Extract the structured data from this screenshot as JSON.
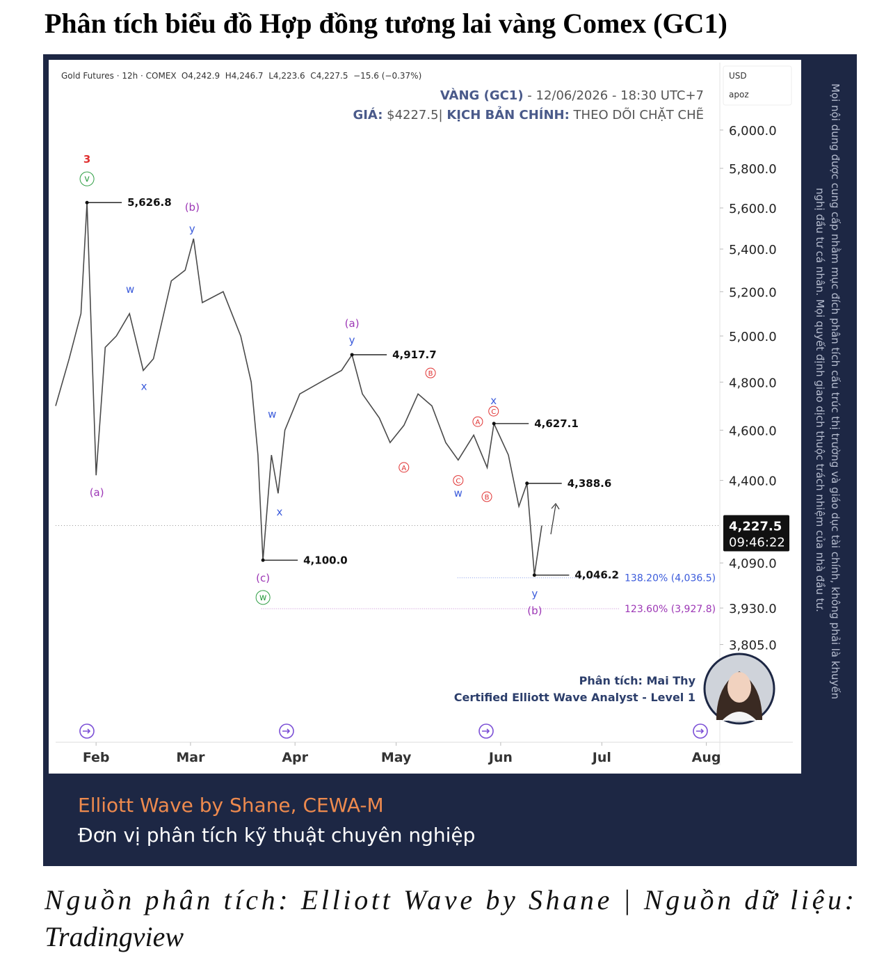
{
  "title": "Phân tích biểu đồ Hợp đồng tương lai vàng Comex (GC1)",
  "chart_data": {
    "type": "line",
    "symbol_info": "Gold Futures · 12h · COMEX",
    "ohlc_info": "O4,242.9  H4,246.7  L4,223.6  C4,227.5  −15.6 (−0.37%)",
    "overlay": {
      "asset": "VÀNG (GC1)",
      "datetime": " - 12/06/2026 - 18:30 UTC+7",
      "price_key": "GIÁ:",
      "price_text": " $4227.5| ",
      "scenario_key": "KỊCH BẢN CHÍNH:",
      "scenario_text": " THEO DÕI CHẶT CHẼ"
    },
    "currency": "USD",
    "axis_mode": "apoz",
    "log_scale": true,
    "color": "#4a4a4a",
    "x": [
      -12,
      -8,
      -4.5,
      -2.7,
      0,
      2.7,
      6,
      9.9,
      14,
      17,
      22.3,
      26.4,
      28.9,
      31.5,
      37.7,
      42.9,
      46,
      48,
      49.5,
      52,
      54,
      56,
      60.4,
      66.6,
      72.8,
      75.9,
      79,
      84,
      87.2,
      91.3,
      95.5,
      99.6,
      103.7,
      107.4,
      112,
      116,
      118,
      122.3,
      125.4,
      127.8,
      130,
      132.2
    ],
    "values": [
      4700,
      4900,
      5100,
      5626.8,
      4420,
      4950,
      5000,
      5100,
      4850,
      4900,
      5250,
      5300,
      5450,
      5150,
      5200,
      5000,
      4800,
      4500,
      4100,
      4500,
      4350,
      4600,
      4750,
      4800,
      4850,
      4917.7,
      4750,
      4650,
      4550,
      4620,
      4750,
      4700,
      4550,
      4480,
      4580,
      4450,
      4627.1,
      4500,
      4300,
      4388.6,
      4046.2,
      4227.5
    ],
    "xlim": [
      -12,
      185
    ],
    "xticks": [
      {
        "value": 0,
        "label": "Feb"
      },
      {
        "value": 28,
        "label": "Mar"
      },
      {
        "value": 59,
        "label": "Apr"
      },
      {
        "value": 89,
        "label": "May"
      },
      {
        "value": 120,
        "label": "Jun"
      },
      {
        "value": 150,
        "label": "Jul"
      },
      {
        "value": 181,
        "label": "Aug"
      }
    ],
    "ylim": [
      3494,
      6369
    ],
    "yticks": [
      {
        "value": 6000,
        "label": "6,000.0"
      },
      {
        "value": 5800,
        "label": "5,800.0"
      },
      {
        "value": 5600,
        "label": "5,600.0"
      },
      {
        "value": 5400,
        "label": "5,400.0"
      },
      {
        "value": 5200,
        "label": "5,200.0"
      },
      {
        "value": 5000,
        "label": "5,000.0"
      },
      {
        "value": 4800,
        "label": "4,800.0"
      },
      {
        "value": 4600,
        "label": "4,600.0"
      },
      {
        "value": 4400,
        "label": "4,400.0"
      },
      {
        "value": 4090,
        "label": "4,090.0"
      },
      {
        "value": 3930,
        "label": "3,930.0"
      },
      {
        "value": 3805,
        "label": "3,805.0"
      }
    ],
    "last_price": {
      "value": 4227.5,
      "label": "4,227.5",
      "countdown": "09:46:22"
    },
    "levels": [
      {
        "value": 5626.8,
        "label": "5,626.8",
        "x": -2.7
      },
      {
        "value": 4917.7,
        "label": "4,917.7",
        "x": 75.9
      },
      {
        "value": 4627.1,
        "label": "4,627.1",
        "x": 118
      },
      {
        "value": 4388.6,
        "label": "4,388.6",
        "x": 127.8
      },
      {
        "value": 4100,
        "label": "4,100.0",
        "x": 49.5
      },
      {
        "value": 4046.2,
        "label": "4,046.2",
        "x": 130
      }
    ],
    "fib_levels": [
      {
        "value": 4036.5,
        "label": "138.20% (4,036.5)",
        "x": 107.2,
        "color": "#3b5bdb"
      },
      {
        "value": 3927.8,
        "label": "123.60% (3,927.8)",
        "x": 49,
        "color": "#9c36b5"
      }
    ],
    "wave_labels": [
      {
        "text": "3",
        "x": -2.7,
        "y": 5847,
        "color": "#e03131",
        "circled": false
      },
      {
        "text": "v",
        "x": -2.7,
        "y": 5746,
        "color": "#2f9e44",
        "circled": true
      },
      {
        "text": "(b)",
        "x": 28.5,
        "y": 5603,
        "color": "#9c36b5",
        "circled": false
      },
      {
        "text": "y",
        "x": 28.5,
        "y": 5497,
        "color": "#3b5bdb",
        "circled": false
      },
      {
        "text": "w",
        "x": 10.1,
        "y": 5210,
        "color": "#3b5bdb",
        "circled": false
      },
      {
        "text": "x",
        "x": 14.2,
        "y": 4782,
        "color": "#3b5bdb",
        "circled": false
      },
      {
        "text": "(a)",
        "x": 0.2,
        "y": 4353,
        "color": "#9c36b5",
        "circled": false
      },
      {
        "text": "w",
        "x": 52.2,
        "y": 4666,
        "color": "#3b5bdb",
        "circled": false
      },
      {
        "text": "x",
        "x": 54.4,
        "y": 4279,
        "color": "#3b5bdb",
        "circled": false
      },
      {
        "text": "(c)",
        "x": 49.5,
        "y": 4036,
        "color": "#9c36b5",
        "circled": false
      },
      {
        "text": "w",
        "x": 49.5,
        "y": 3967,
        "color": "#2f9e44",
        "circled": true
      },
      {
        "text": "(a)",
        "x": 75.9,
        "y": 5055,
        "color": "#9c36b5",
        "circled": false
      },
      {
        "text": "y",
        "x": 75.9,
        "y": 4981,
        "color": "#3b5bdb",
        "circled": false
      },
      {
        "text": "B",
        "x": 99.2,
        "y": 4839,
        "color": "#e03131",
        "circled": true
      },
      {
        "text": "A",
        "x": 91.3,
        "y": 4451,
        "color": "#e03131",
        "circled": true
      },
      {
        "text": "A",
        "x": 113.2,
        "y": 4635,
        "color": "#e03131",
        "circled": true
      },
      {
        "text": "C",
        "x": 117.9,
        "y": 4678,
        "color": "#e03131",
        "circled": true
      },
      {
        "text": "x",
        "x": 117.9,
        "y": 4721,
        "color": "#3b5bdb",
        "circled": false
      },
      {
        "text": "C",
        "x": 107.4,
        "y": 4400,
        "color": "#e03131",
        "circled": true
      },
      {
        "text": "w",
        "x": 107.4,
        "y": 4351,
        "color": "#3b5bdb",
        "circled": false
      },
      {
        "text": "B",
        "x": 115.9,
        "y": 4337,
        "color": "#e03131",
        "circled": true
      },
      {
        "text": "y",
        "x": 130.1,
        "y": 3980,
        "color": "#3b5bdb",
        "circled": false
      },
      {
        "text": "(b)",
        "x": 130.1,
        "y": 3921,
        "color": "#9c36b5",
        "circled": false
      }
    ]
  },
  "analyst": {
    "name": "Phân tích: Mai Thy",
    "credential": "Certified Elliott Wave Analyst - Level 1"
  },
  "disclaimer": [
    "Mọi nội dung được cung cấp nhằm mục đích phân tích cấu trúc thị trường và giáo dục tài chính, không phải là khuyến",
    "nghị đầu tư cá nhân. Mọi quyết định giao dịch thuộc trách nhiệm của nhà đầu tư."
  ],
  "footer": {
    "brand": "Elliott Wave by Shane, CEWA-M",
    "tagline": "Đơn vị phân tích kỹ thuật chuyên nghiệp"
  },
  "caption": [
    "Nguồn phân tích: Elliott Wave by Shane | Nguồn dữ liệu:",
    "Tradingview"
  ]
}
